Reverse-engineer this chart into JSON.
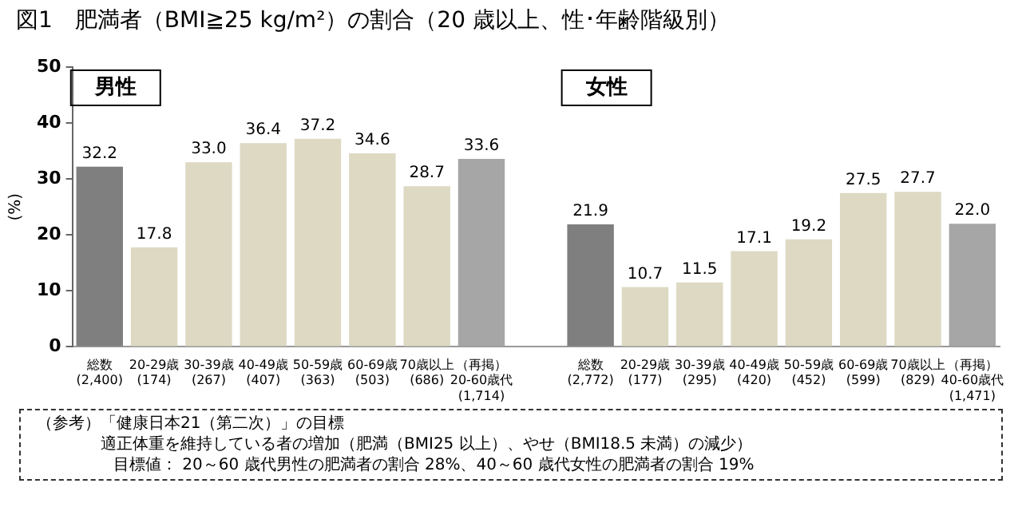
{
  "chart_data": {
    "type": "bar",
    "title": "図1　肥満者（BMI≧25 kg/m²）の割合（20 歳以上、性･年齢階級別）",
    "ylabel": "(%)",
    "categories": [
      "総数\n(2,400)",
      "20-29歳\n(174)",
      "30-39歳\n(267)",
      "40-49歳\n(407)",
      "50-59歳\n(363)",
      "60-69歳\n(503)",
      "70歳以上\n(686)",
      "（再掲）\n20-60歳代\n(1,714)",
      null,
      "総数\n(2,772)",
      "20-29歳\n(177)",
      "30-39歳\n(295)",
      "40-49歳\n(420)",
      "50-59歳\n(452)",
      "60-69歳\n(599)",
      "70歳以上\n(829)",
      "（再掲）\n40-60歳代\n(1,471)"
    ],
    "values": [
      32.2,
      17.8,
      33.0,
      36.4,
      37.2,
      34.6,
      28.7,
      33.6,
      null,
      21.9,
      10.7,
      11.5,
      17.1,
      19.2,
      27.5,
      27.7,
      22.0
    ],
    "value_labels": [
      "32.2",
      "17.8",
      "33.0",
      "36.4",
      "37.2",
      "34.6",
      "28.7",
      "33.6",
      null,
      "21.9",
      "10.7",
      "11.5",
      "17.1",
      "19.2",
      "27.5",
      "27.7",
      "22.0"
    ],
    "colors": [
      "#7f7f7f",
      "#ddd9c3",
      "#ddd9c3",
      "#ddd9c3",
      "#ddd9c3",
      "#ddd9c3",
      "#ddd9c3",
      "#a6a6a6",
      null,
      "#7f7f7f",
      "#ddd9c3",
      "#ddd9c3",
      "#ddd9c3",
      "#ddd9c3",
      "#ddd9c3",
      "#ddd9c3",
      "#a6a6a6"
    ],
    "ylim": [
      0,
      50
    ],
    "yticks": [
      0,
      10,
      20,
      30,
      40,
      50
    ],
    "grid": false,
    "legend": false,
    "annotations": [
      "男性",
      "女性",
      "（参考）「健康日本21（第二次）」の目標",
      "適正体重を維持している者の増加（肥満（BMI25 以上）、やせ（BMI18.5 未満）の減少）",
      "目標値：  20～60 歳代男性の肥満者の割合  28%、40～60 歳代女性の肥満者の割合  19%"
    ]
  }
}
